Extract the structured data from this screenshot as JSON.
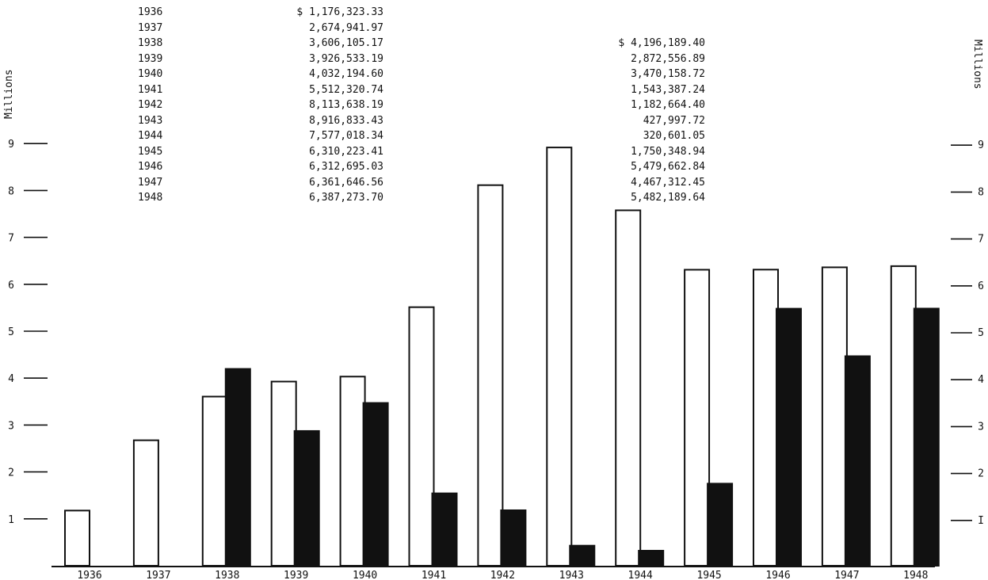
{
  "chart_data": {
    "type": "bar",
    "categories": [
      "1936",
      "1937",
      "1938",
      "1939",
      "1940",
      "1941",
      "1942",
      "1943",
      "1944",
      "1945",
      "1946",
      "1947",
      "1948"
    ],
    "series": [
      {
        "color": "#ffffff",
        "values": [
          1.17632333,
          2.67494197,
          3.60610517,
          3.92653319,
          4.0321946,
          5.51232074,
          8.11363819,
          8.91683343,
          7.57701834,
          6.31022341,
          6.31269503,
          6.36164656,
          6.3872737
        ]
      },
      {
        "color": "#111111",
        "values": [
          null,
          null,
          4.1961894,
          2.87255689,
          3.47015872,
          1.54338724,
          1.1826644,
          0.42799772,
          0.32060105,
          1.75034894,
          5.47966284,
          4.46731245,
          5.48218964
        ]
      }
    ],
    "ylabel_left": "Millions",
    "ylabel_right": "Millions",
    "ylim": [
      0,
      9
    ],
    "yticks_left": [
      "1",
      "2",
      "3",
      "4",
      "5",
      "6",
      "7",
      "8",
      "9"
    ],
    "yticks_right": [
      "I",
      "2",
      "3",
      "4",
      "5",
      "6",
      "7",
      "8",
      "9"
    ],
    "grid": false,
    "table": {
      "years": [
        "1936",
        "1937",
        "1938",
        "1939",
        "1940",
        "1941",
        "1942",
        "1943",
        "1944",
        "1945",
        "1946",
        "1947",
        "1948"
      ],
      "col1": [
        "$ 1,176,323.33",
        "2,674,941.97",
        "3,606,105.17",
        "3,926,533.19",
        "4,032,194.60",
        "5,512,320.74",
        "8,113,638.19",
        "8,916,833.43",
        "7,577,018.34",
        "6,310,223.41",
        "6,312,695.03",
        "6,361,646.56",
        "6,387,273.70"
      ],
      "col2": [
        "$ 4,196,189.40",
        "2,872,556.89",
        "3,470,158.72",
        "1,543,387.24",
        "1,182,664.40",
        "427,997.72",
        "320,601.05",
        "1,750,348.94",
        "5,479,662.84",
        "4,467,312.45",
        "5,482,189.64"
      ]
    }
  }
}
